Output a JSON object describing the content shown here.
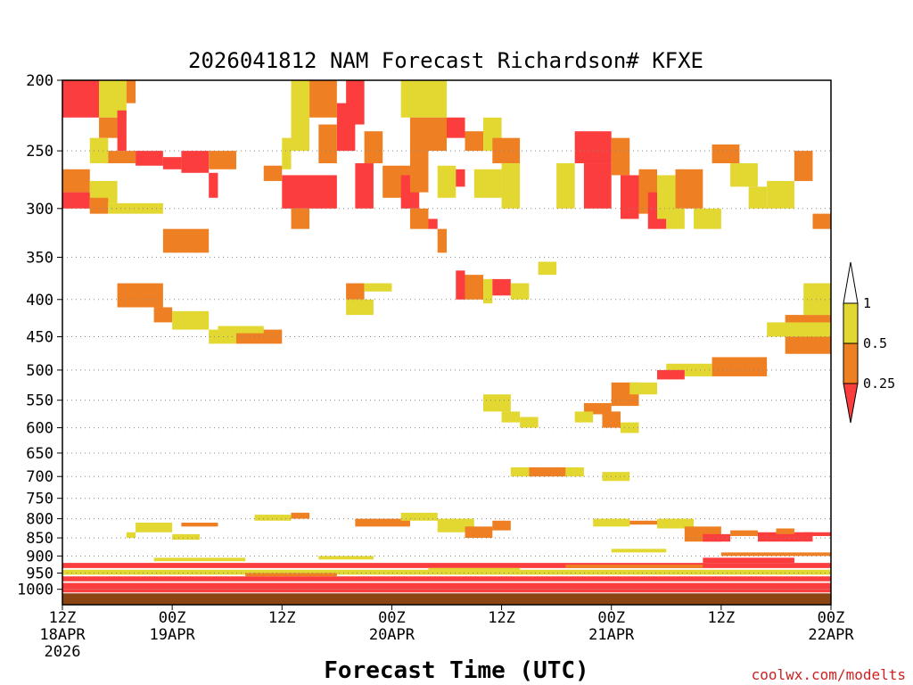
{
  "chart_data": {
    "type": "heatmap",
    "title": "2026041812 NAM Forecast Richardson# KFXE",
    "xlabel": "Forecast Time (UTC)",
    "ylabel": "",
    "y_axis": {
      "unit": "hPa",
      "range": [
        1050,
        200
      ],
      "ticks": [
        "200",
        "250",
        "300",
        "350",
        "400",
        "450",
        "500",
        "550",
        "600",
        "650",
        "700",
        "750",
        "800",
        "850",
        "900",
        "950",
        "1000"
      ]
    },
    "x_axis": {
      "range_hours": [
        0,
        84
      ],
      "ticks": [
        {
          "hour": 0,
          "label1": "12Z",
          "label2": "18APR",
          "label3": "2026"
        },
        {
          "hour": 12,
          "label1": "00Z",
          "label2": "19APR",
          "label3": ""
        },
        {
          "hour": 24,
          "label1": "12Z",
          "label2": "",
          "label3": ""
        },
        {
          "hour": 36,
          "label1": "00Z",
          "label2": "20APR",
          "label3": ""
        },
        {
          "hour": 48,
          "label1": "12Z",
          "label2": "",
          "label3": ""
        },
        {
          "hour": 60,
          "label1": "00Z",
          "label2": "21APR",
          "label3": ""
        },
        {
          "hour": 72,
          "label1": "12Z",
          "label2": "",
          "label3": ""
        },
        {
          "hour": 84,
          "label1": "00Z",
          "label2": "22APR",
          "label3": ""
        }
      ]
    },
    "colorbar": {
      "labels": [
        "1",
        "0.5",
        "0.25"
      ],
      "levels": [
        {
          "label": "0.5–1",
          "color": "#e3d731"
        },
        {
          "label": "0.25–0.5",
          "color": "#ee7f22"
        },
        {
          "label": "<0.25",
          "color": "#fc3d3d"
        }
      ]
    },
    "colors": {
      "c1": "#e3d731",
      "c2": "#ee7f22",
      "c3": "#fc3d3d",
      "ground": "#8b4513"
    },
    "cells": [
      [
        0,
        4,
        200,
        225,
        3
      ],
      [
        4,
        7,
        200,
        225,
        1
      ],
      [
        7,
        8,
        200,
        215,
        2
      ],
      [
        4,
        6,
        225,
        240,
        2
      ],
      [
        6,
        7,
        220,
        250,
        3
      ],
      [
        3,
        5,
        240,
        260,
        1
      ],
      [
        5,
        8,
        250,
        260,
        2
      ],
      [
        8,
        11,
        250,
        262,
        3
      ],
      [
        11,
        13,
        255,
        265,
        3
      ],
      [
        13,
        16,
        250,
        268,
        3
      ],
      [
        16,
        19,
        250,
        265,
        2
      ],
      [
        0,
        3,
        265,
        285,
        2
      ],
      [
        3,
        6,
        275,
        295,
        1
      ],
      [
        0,
        3,
        285,
        300,
        3
      ],
      [
        3,
        5,
        290,
        305,
        2
      ],
      [
        5,
        11,
        295,
        305,
        1
      ],
      [
        11,
        16,
        320,
        345,
        2
      ],
      [
        6,
        11,
        380,
        410,
        2
      ],
      [
        10,
        12,
        410,
        430,
        2
      ],
      [
        12,
        16,
        415,
        440,
        1
      ],
      [
        16,
        19,
        440,
        460,
        1
      ],
      [
        19,
        24,
        440,
        460,
        2
      ],
      [
        17,
        22,
        435,
        445,
        1
      ],
      [
        24,
        30,
        270,
        300,
        3
      ],
      [
        22,
        24,
        262,
        275,
        2
      ],
      [
        16,
        17,
        268,
        290,
        3
      ],
      [
        24,
        25,
        240,
        265,
        1
      ],
      [
        25,
        27,
        200,
        250,
        1
      ],
      [
        27,
        30,
        200,
        225,
        2
      ],
      [
        30,
        32,
        215,
        250,
        3
      ],
      [
        28,
        30,
        230,
        260,
        2
      ],
      [
        31,
        33,
        200,
        230,
        3
      ],
      [
        33,
        35,
        235,
        260,
        2
      ],
      [
        32,
        34,
        260,
        300,
        3
      ],
      [
        35,
        38,
        262,
        290,
        2
      ],
      [
        37,
        39,
        270,
        300,
        3
      ],
      [
        38,
        40,
        248,
        285,
        2
      ],
      [
        25,
        27,
        300,
        320,
        2
      ],
      [
        31,
        33,
        380,
        400,
        2
      ],
      [
        33,
        36,
        380,
        390,
        1
      ],
      [
        31,
        34,
        400,
        420,
        1
      ],
      [
        37,
        42,
        200,
        225,
        1
      ],
      [
        38,
        42,
        225,
        250,
        2
      ],
      [
        42,
        44,
        225,
        240,
        3
      ],
      [
        44,
        46,
        235,
        250,
        2
      ],
      [
        46,
        48,
        225,
        250,
        1
      ],
      [
        47,
        50,
        240,
        260,
        2
      ],
      [
        41,
        43,
        262,
        290,
        1
      ],
      [
        43,
        44,
        265,
        280,
        3
      ],
      [
        45,
        48,
        265,
        290,
        1
      ],
      [
        48,
        50,
        260,
        300,
        1
      ],
      [
        38,
        40,
        300,
        320,
        2
      ],
      [
        40,
        41,
        310,
        320,
        3
      ],
      [
        41,
        42,
        320,
        345,
        2
      ],
      [
        43,
        44,
        365,
        400,
        3
      ],
      [
        44,
        46,
        370,
        400,
        2
      ],
      [
        46,
        47,
        375,
        405,
        1
      ],
      [
        47,
        49,
        375,
        395,
        3
      ],
      [
        49,
        51,
        380,
        400,
        1
      ],
      [
        52,
        54,
        355,
        370,
        1
      ],
      [
        54,
        56,
        260,
        300,
        1
      ],
      [
        56,
        60,
        235,
        260,
        3
      ],
      [
        57,
        60,
        260,
        300,
        3
      ],
      [
        60,
        62,
        240,
        270,
        2
      ],
      [
        61,
        63,
        270,
        310,
        3
      ],
      [
        63,
        65,
        265,
        305,
        2
      ],
      [
        64,
        66,
        285,
        320,
        3
      ],
      [
        65,
        67,
        270,
        310,
        1
      ],
      [
        67,
        70,
        265,
        300,
        2
      ],
      [
        66,
        68,
        300,
        320,
        1
      ],
      [
        69,
        72,
        300,
        320,
        1
      ],
      [
        71,
        74,
        245,
        260,
        2
      ],
      [
        73,
        76,
        260,
        280,
        1
      ],
      [
        75,
        77,
        280,
        300,
        1
      ],
      [
        77,
        80,
        275,
        300,
        1
      ],
      [
        80,
        82,
        250,
        275,
        2
      ],
      [
        82,
        84,
        305,
        320,
        2
      ],
      [
        79,
        84,
        420,
        475,
        2
      ],
      [
        77,
        84,
        430,
        450,
        1
      ],
      [
        81,
        84,
        380,
        420,
        1
      ],
      [
        71,
        77,
        480,
        510,
        2
      ],
      [
        66,
        71,
        490,
        510,
        1
      ],
      [
        65,
        68,
        500,
        515,
        3
      ],
      [
        60,
        63,
        520,
        560,
        2
      ],
      [
        62,
        65,
        520,
        540,
        1
      ],
      [
        57,
        60,
        555,
        575,
        2
      ],
      [
        56,
        58,
        570,
        590,
        1
      ],
      [
        59,
        61,
        570,
        600,
        2
      ],
      [
        61,
        63,
        590,
        610,
        1
      ],
      [
        48,
        50,
        570,
        590,
        1
      ],
      [
        50,
        52,
        580,
        600,
        1
      ],
      [
        46,
        49,
        540,
        570,
        1
      ],
      [
        49,
        51,
        680,
        700,
        1
      ],
      [
        51,
        55,
        680,
        700,
        2
      ],
      [
        55,
        57,
        680,
        700,
        1
      ],
      [
        59,
        62,
        690,
        710,
        1
      ],
      [
        32,
        38,
        800,
        820,
        2
      ],
      [
        37,
        41,
        785,
        805,
        1
      ],
      [
        41,
        45,
        800,
        835,
        1
      ],
      [
        44,
        47,
        820,
        850,
        2
      ],
      [
        47,
        49,
        805,
        830,
        2
      ],
      [
        25,
        27,
        785,
        800,
        2
      ],
      [
        21,
        25,
        790,
        805,
        1
      ],
      [
        13,
        17,
        810,
        820,
        2
      ],
      [
        8,
        12,
        810,
        835,
        1
      ],
      [
        7,
        8,
        835,
        850,
        1
      ],
      [
        12,
        15,
        840,
        855,
        1
      ],
      [
        58,
        62,
        800,
        820,
        1
      ],
      [
        62,
        66,
        805,
        815,
        2
      ],
      [
        65,
        69,
        800,
        825,
        1
      ],
      [
        68,
        72,
        820,
        860,
        2
      ],
      [
        70,
        73,
        840,
        860,
        3
      ],
      [
        73,
        76,
        830,
        845,
        2
      ],
      [
        76,
        82,
        835,
        860,
        3
      ],
      [
        78,
        80,
        825,
        840,
        2
      ],
      [
        81,
        84,
        835,
        845,
        3
      ],
      [
        0,
        84,
        920,
        935,
        3
      ],
      [
        0,
        84,
        940,
        955,
        1
      ],
      [
        0,
        84,
        960,
        975,
        3
      ],
      [
        0,
        84,
        980,
        1000,
        3
      ],
      [
        0,
        84,
        1000,
        1010,
        3
      ],
      [
        20,
        30,
        950,
        960,
        2
      ],
      [
        40,
        50,
        935,
        945,
        1
      ],
      [
        55,
        70,
        925,
        935,
        2
      ],
      [
        70,
        80,
        905,
        920,
        3
      ],
      [
        10,
        20,
        905,
        915,
        1
      ],
      [
        28,
        34,
        900,
        910,
        1
      ],
      [
        60,
        66,
        880,
        890,
        1
      ],
      [
        72,
        84,
        890,
        900,
        2
      ]
    ]
  }
}
